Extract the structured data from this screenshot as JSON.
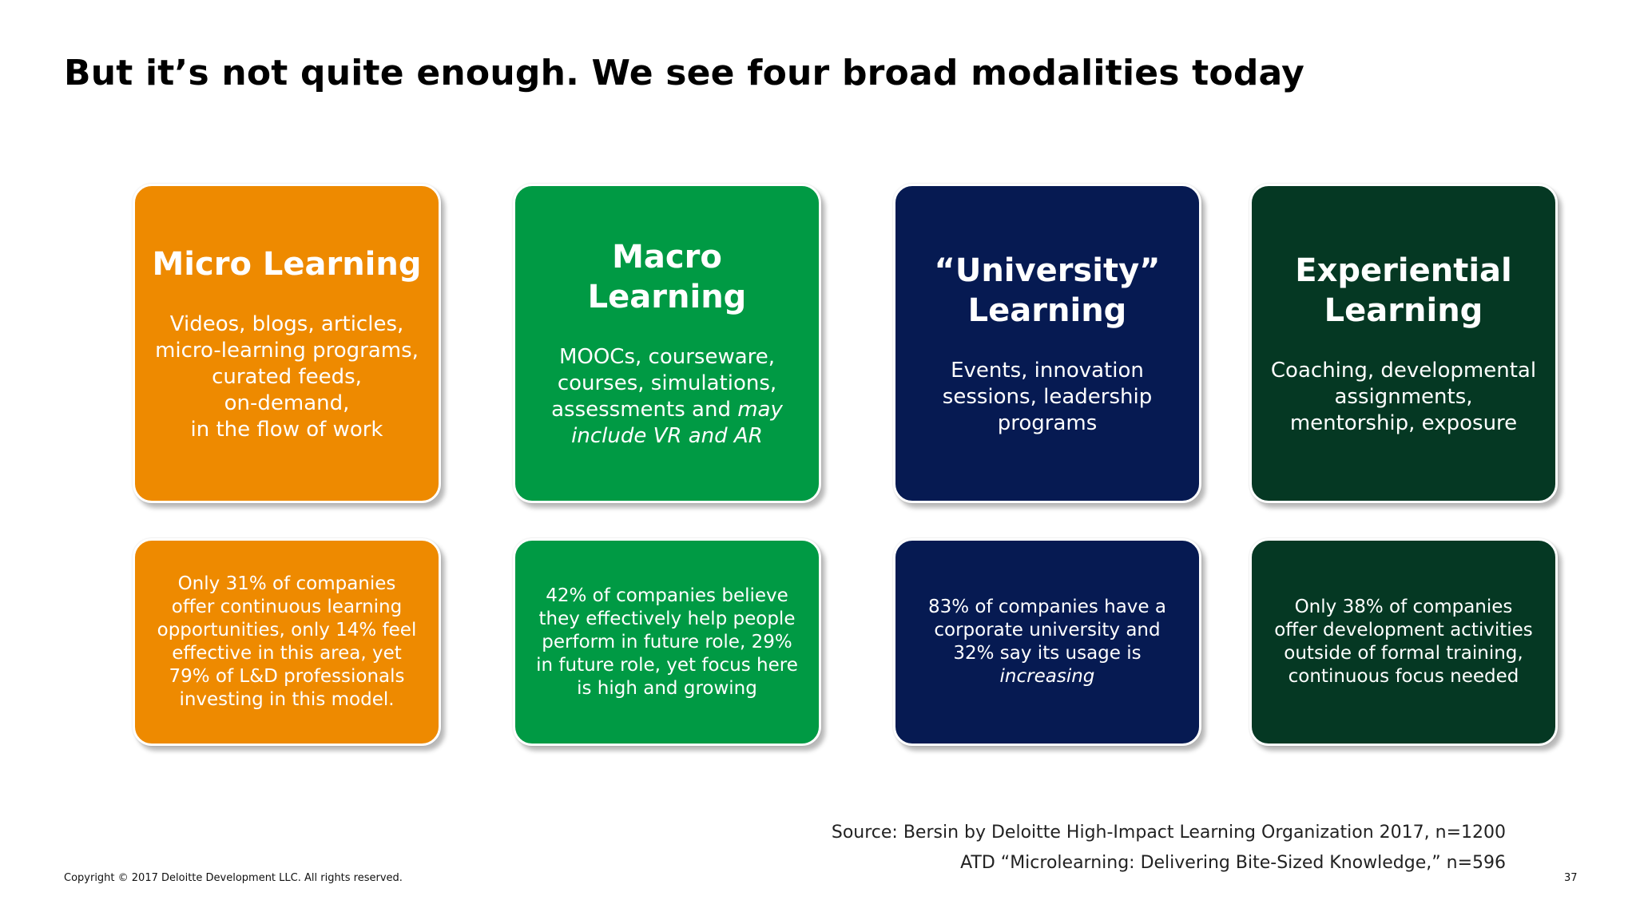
{
  "slide": {
    "title": "But it’s not quite enough.  We see four broad modalities today",
    "colors": {
      "orange": "#EE8A00",
      "green": "#009A44",
      "navy": "#061A52",
      "dark_green": "#053823"
    },
    "modalities": [
      {
        "color": "#EE8A00",
        "heading": [
          "Micro Learning"
        ],
        "description": [
          "Videos, blogs, articles,",
          "micro-learning programs,",
          "curated feeds,",
          "on-demand,",
          "in the flow of work"
        ],
        "stat": [
          "Only 31% of companies",
          "offer continuous learning",
          "opportunities, only 14% feel",
          "effective in this area, yet",
          "79% of L&D professionals",
          "investing in this model."
        ]
      },
      {
        "color": "#009A44",
        "heading": [
          "Macro",
          "Learning"
        ],
        "description": [
          "MOOCs, courseware,",
          "courses, simulations,",
          "assessments and ",
          "include VR and AR"
        ],
        "description_italic_1": "may",
        "stat": [
          "42% of companies believe",
          "they effectively help people",
          "perform in future role, 29%",
          "in future role, yet focus here",
          "is high and growing"
        ]
      },
      {
        "color": "#061A52",
        "heading": [
          "“University”",
          "Learning"
        ],
        "description": [
          "Events, innovation",
          "sessions, leadership",
          "programs"
        ],
        "stat": [
          "83% of companies have a",
          "corporate university and",
          "32% say its usage is",
          "increasing"
        ]
      },
      {
        "color": "#053823",
        "heading": [
          "Experiential",
          "Learning"
        ],
        "description": [
          "Coaching, developmental",
          "assignments,",
          "mentorship, exposure"
        ],
        "stat": [
          "Only 38% of companies",
          "offer development activities",
          "outside of formal training,",
          "continuous focus needed"
        ]
      }
    ],
    "source": [
      "Source: Bersin by Deloitte High-Impact Learning Organization 2017, n=1200",
      "ATD “Microlearning: Delivering Bite-Sized Knowledge,” n=596"
    ],
    "copyright": "Copyright © 2017 Deloitte Development LLC. All rights reserved.",
    "page_number": "37"
  }
}
